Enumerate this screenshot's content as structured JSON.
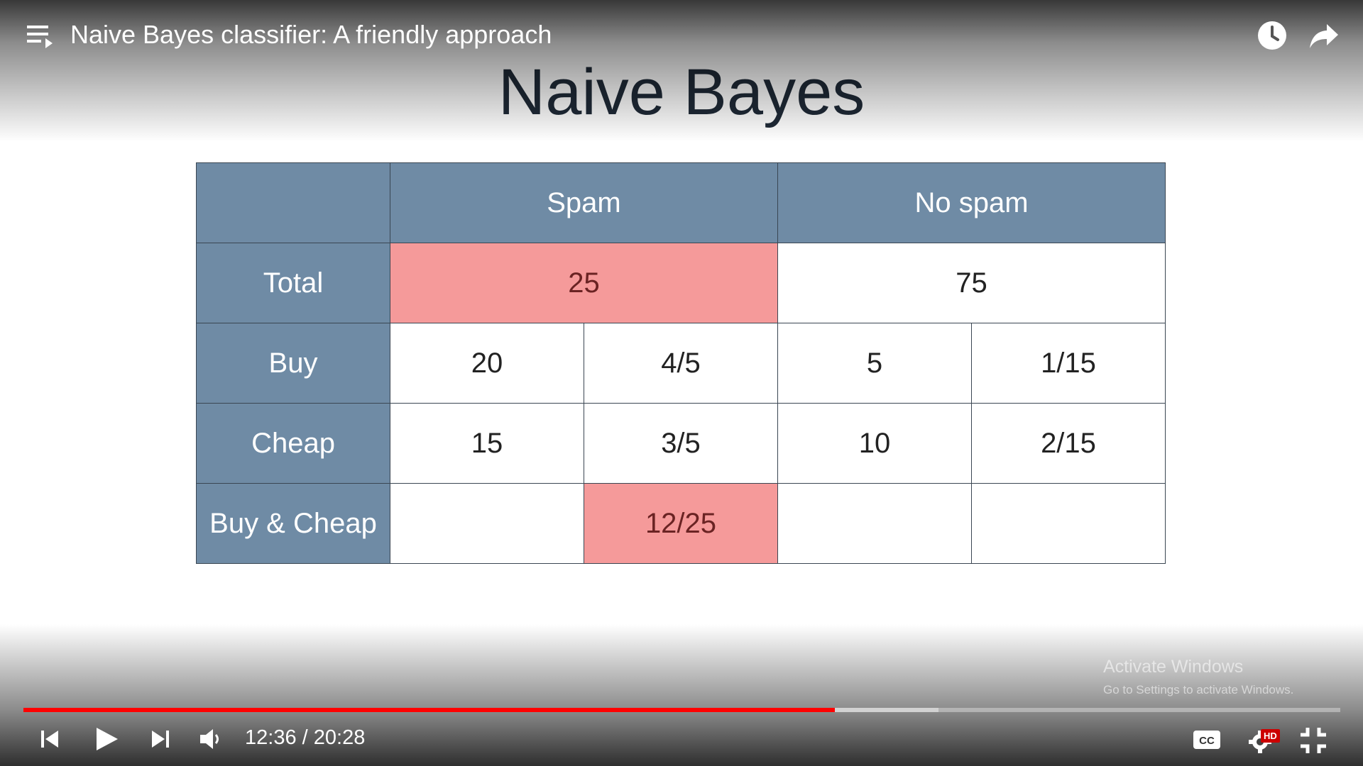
{
  "player": {
    "video_title": "Naive Bayes classifier: A friendly approach",
    "current_time": "12:36",
    "separator": " / ",
    "duration": "20:28",
    "progress_fraction": 0.616,
    "buffered_fraction": 0.695,
    "colors": {
      "progress": "#ff0000",
      "hd_badge": "#cc0000"
    },
    "hd_label": "HD",
    "icons": [
      "playlist-icon",
      "watch-later-icon",
      "share-icon",
      "previous-icon",
      "play-icon",
      "next-icon",
      "volume-icon",
      "captions-icon",
      "settings-icon",
      "exit-fullscreen-icon"
    ]
  },
  "slide": {
    "title": "Naive Bayes",
    "colors": {
      "header": "#6f8ba5",
      "highlight": "#f59a9a"
    },
    "table": {
      "column_headers": [
        "Spam",
        "No spam"
      ],
      "total_row": {
        "label": "Total",
        "spam": "25",
        "no_spam": "75"
      },
      "rows": [
        {
          "label": "Buy",
          "cells": [
            "20",
            "4/5",
            "5",
            "1/15"
          ]
        },
        {
          "label": "Cheap",
          "cells": [
            "15",
            "3/5",
            "10",
            "2/15"
          ]
        },
        {
          "label": "Buy & Cheap",
          "cells": [
            "",
            "12/25",
            "",
            ""
          ]
        }
      ]
    }
  },
  "watermark": {
    "line1": "Activate Windows",
    "line2": "Go to Settings to activate Windows."
  }
}
